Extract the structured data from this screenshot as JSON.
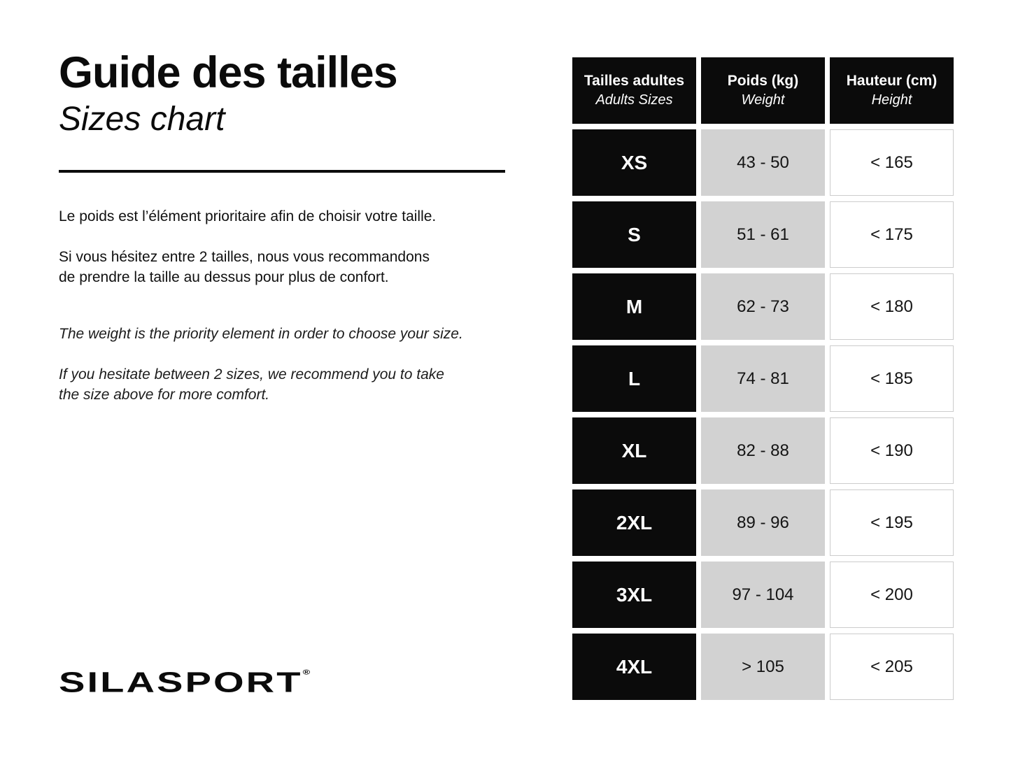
{
  "header": {
    "title_fr": "Guide des tailles",
    "title_en": "Sizes chart"
  },
  "intro": {
    "fr_line1": "Le poids est l’élément prioritaire afin de choisir votre taille.",
    "fr_line2": "Si vous hésitez entre 2 tailles, nous vous recommandons\nde prendre la taille au dessus pour plus de confort.",
    "en_line1": "The weight is the priority element in order to choose your size.",
    "en_line2": "If you hesitate between 2 sizes, we recommend you to take\nthe size above for more comfort."
  },
  "logo": {
    "text": "SILASPORT",
    "registered": "®"
  },
  "colors": {
    "header_black": "#0b0b0b",
    "weight_cell_gray": "#d2d2d2",
    "height_cell_border": "#cccccc",
    "background": "#ffffff"
  },
  "chart_data": {
    "type": "table",
    "title": "Guide des tailles / Sizes chart",
    "columns": [
      {
        "label_fr": "Tailles adultes",
        "label_en": "Adults Sizes"
      },
      {
        "label_fr": "Poids (kg)",
        "label_en": "Weight"
      },
      {
        "label_fr": "Hauteur (cm)",
        "label_en": "Height"
      }
    ],
    "rows": [
      {
        "size": "XS",
        "weight_kg": "43 - 50",
        "height_cm": "< 165"
      },
      {
        "size": "S",
        "weight_kg": "51 - 61",
        "height_cm": "< 175"
      },
      {
        "size": "M",
        "weight_kg": "62 - 73",
        "height_cm": "< 180"
      },
      {
        "size": "L",
        "weight_kg": "74 - 81",
        "height_cm": "< 185"
      },
      {
        "size": "XL",
        "weight_kg": "82 - 88",
        "height_cm": "< 190"
      },
      {
        "size": "2XL",
        "weight_kg": "89 - 96",
        "height_cm": "< 195"
      },
      {
        "size": "3XL",
        "weight_kg": "97 - 104",
        "height_cm": "< 200"
      },
      {
        "size": "4XL",
        "weight_kg": "> 105",
        "height_cm": "< 205"
      }
    ]
  }
}
